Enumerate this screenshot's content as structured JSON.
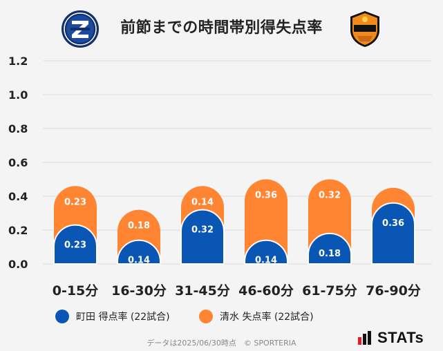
{
  "title": "前節までの時間帯別得失点率",
  "logos": {
    "left": "zelvia-crest-icon",
    "right": "s-pulse-crest-icon"
  },
  "legend": [
    {
      "label": "町田 得点率 (22試合)",
      "color": "#0a56b5"
    },
    {
      "label": "清水 失点率 (22試合)",
      "color": "#ff8533"
    }
  ],
  "footer": "データは2025/06/30時点　© SPORTERIA",
  "brand": "STATs",
  "chart_data": {
    "type": "bar",
    "stacked": true,
    "categories": [
      "0-15分",
      "16-30分",
      "31-45分",
      "46-60分",
      "61-75分",
      "76-90分"
    ],
    "series": [
      {
        "name": "町田 得点率 (22試合)",
        "values": [
          0.23,
          0.14,
          0.32,
          0.14,
          0.18,
          0.36
        ],
        "color": "#0a56b5"
      },
      {
        "name": "清水 失点率 (22試合)",
        "values": [
          0.23,
          0.18,
          0.14,
          0.36,
          0.32,
          0.09
        ],
        "color": "#ff8533"
      }
    ],
    "data_labels": [
      [
        "0.23",
        "0.14",
        "0.32",
        "0.14",
        "0.18",
        "0.36"
      ],
      [
        "0.23",
        "0.18",
        "0.14",
        "0.36",
        "0.32",
        ""
      ]
    ],
    "yticks": [
      "0.0",
      "0.2",
      "0.4",
      "0.6",
      "0.8",
      "1.0",
      "1.2"
    ],
    "ylim": [
      0,
      1.2
    ],
    "grid": true,
    "legend_position": "bottom"
  }
}
